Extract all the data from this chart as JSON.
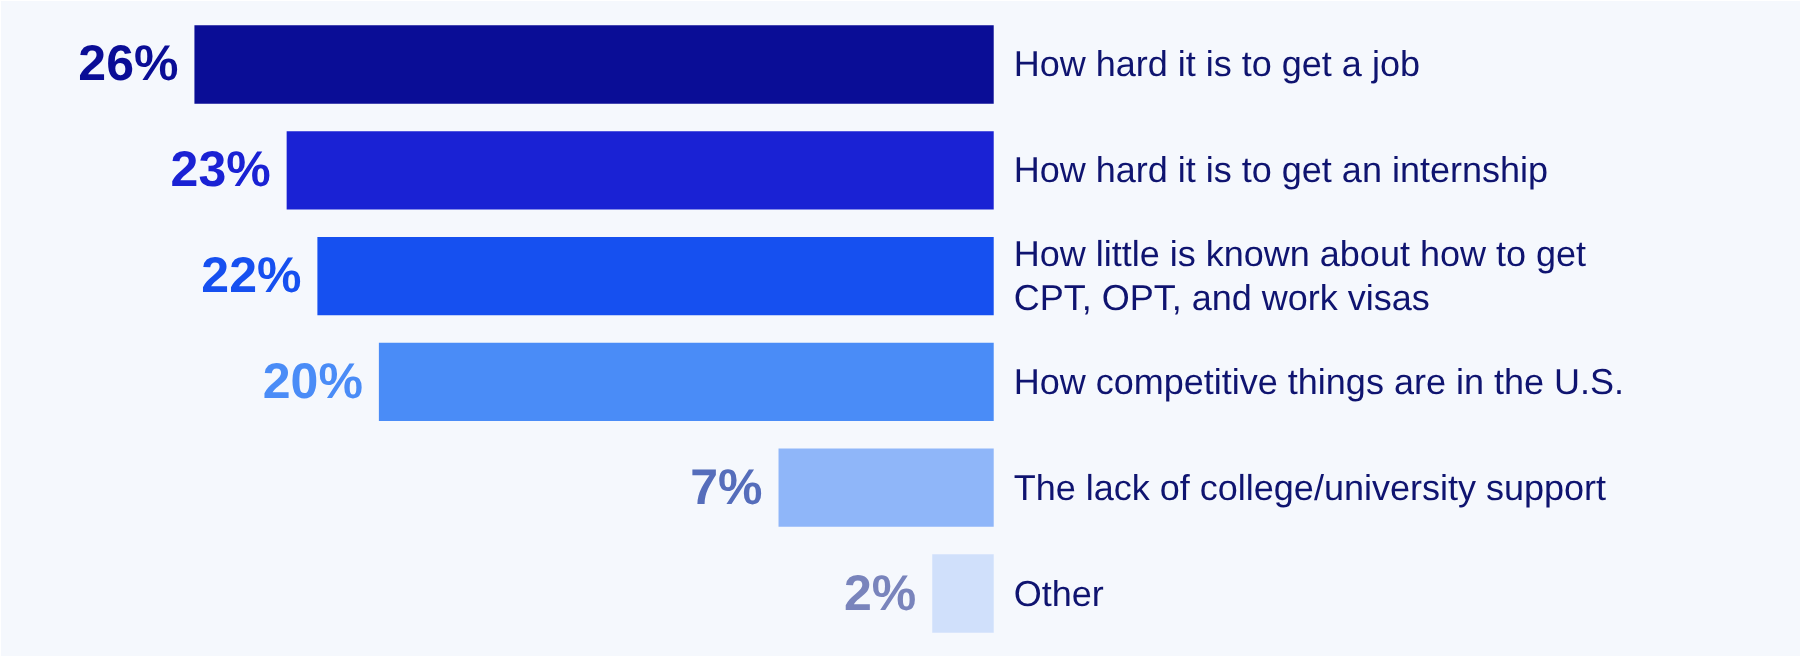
{
  "chart_data": {
    "type": "bar",
    "orientation": "horizontal",
    "tick_labels": false,
    "value_labels": [
      "26%",
      "23%",
      "22%",
      "20%",
      "7%",
      "2%"
    ],
    "categories": [
      "How hard it is to get a job",
      "How hard it is to get an internship",
      "How little is known about how to get CPT, OPT, and work visas",
      "How competitive things are in the U.S.",
      "The lack of college/university support",
      "Other"
    ],
    "values": [
      26,
      23,
      22,
      20,
      7,
      2
    ],
    "colors": [
      "#0a0d96",
      "#1a22d4",
      "#1650f0",
      "#4a8cf7",
      "#8fb6f9",
      "#d0e0fb"
    ]
  }
}
